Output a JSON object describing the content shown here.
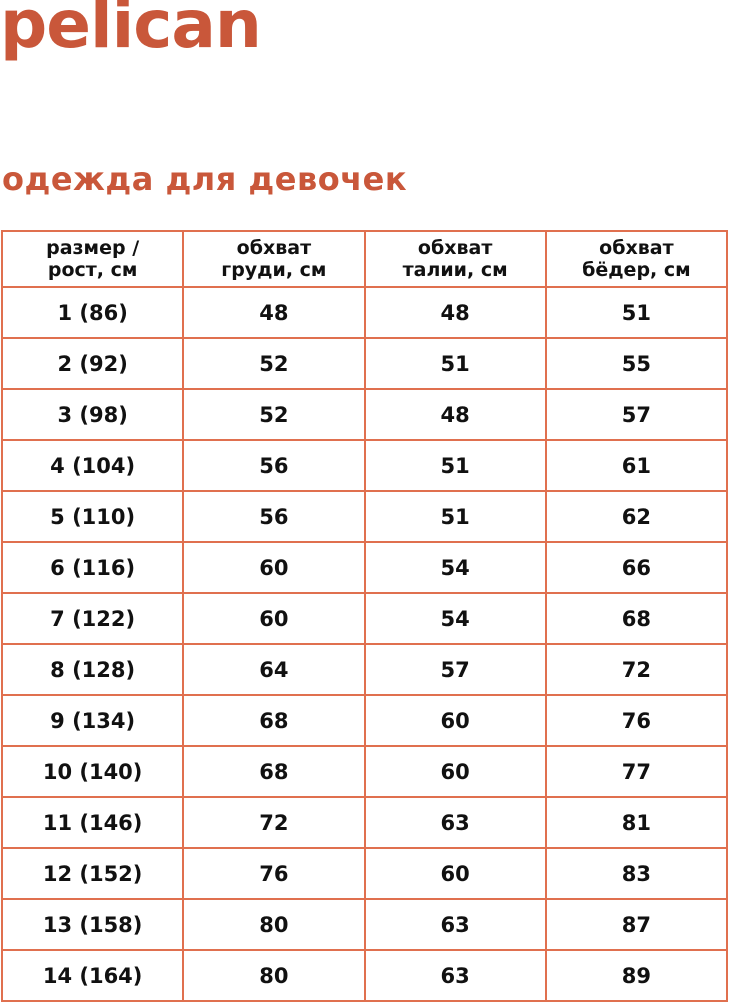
{
  "brand": {
    "logo_text": "pelican",
    "color": "#c9573a"
  },
  "title": "одежда для девочек",
  "table": {
    "border_color": "#e0704f",
    "headers": [
      [
        "размер /",
        "рост, см"
      ],
      [
        "обхват",
        "груди, см"
      ],
      [
        "обхват",
        "талии, см"
      ],
      [
        "обхват",
        "бёдер, см"
      ]
    ],
    "rows": [
      [
        "1 (86)",
        "48",
        "48",
        "51"
      ],
      [
        "2 (92)",
        "52",
        "51",
        "55"
      ],
      [
        "3 (98)",
        "52",
        "48",
        "57"
      ],
      [
        "4 (104)",
        "56",
        "51",
        "61"
      ],
      [
        "5 (110)",
        "56",
        "51",
        "62"
      ],
      [
        "6 (116)",
        "60",
        "54",
        "66"
      ],
      [
        "7 (122)",
        "60",
        "54",
        "68"
      ],
      [
        "8 (128)",
        "64",
        "57",
        "72"
      ],
      [
        "9 (134)",
        "68",
        "60",
        "76"
      ],
      [
        "10 (140)",
        "68",
        "60",
        "77"
      ],
      [
        "11 (146)",
        "72",
        "63",
        "81"
      ],
      [
        "12 (152)",
        "76",
        "60",
        "83"
      ],
      [
        "13 (158)",
        "80",
        "63",
        "87"
      ],
      [
        "14 (164)",
        "80",
        "63",
        "89"
      ]
    ]
  }
}
